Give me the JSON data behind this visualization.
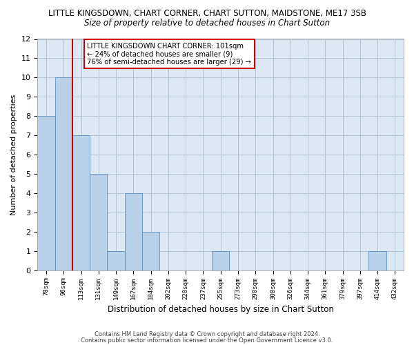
{
  "title_line1": "LITTLE KINGSDOWN, CHART CORNER, CHART SUTTON, MAIDSTONE, ME17 3SB",
  "title_line2": "Size of property relative to detached houses in Chart Sutton",
  "xlabel": "Distribution of detached houses by size in Chart Sutton",
  "ylabel": "Number of detached properties",
  "categories": [
    "78sqm",
    "96sqm",
    "113sqm",
    "131sqm",
    "149sqm",
    "167sqm",
    "184sqm",
    "202sqm",
    "220sqm",
    "237sqm",
    "255sqm",
    "273sqm",
    "290sqm",
    "308sqm",
    "326sqm",
    "344sqm",
    "361sqm",
    "379sqm",
    "397sqm",
    "414sqm",
    "432sqm"
  ],
  "values": [
    8,
    10,
    7,
    5,
    1,
    4,
    2,
    0,
    0,
    0,
    1,
    0,
    0,
    0,
    0,
    0,
    0,
    0,
    0,
    1,
    0
  ],
  "bar_color": "#b8d0e8",
  "bar_edge_color": "#6090c0",
  "reference_line_x": 1.5,
  "reference_line_color": "#cc0000",
  "ylim": [
    0,
    12
  ],
  "yticks": [
    0,
    1,
    2,
    3,
    4,
    5,
    6,
    7,
    8,
    9,
    10,
    11,
    12
  ],
  "annotation_box_text": "LITTLE KINGSDOWN CHART CORNER: 101sqm\n← 24% of detached houses are smaller (9)\n76% of semi-detached houses are larger (29) →",
  "footer_line1": "Contains HM Land Registry data © Crown copyright and database right 2024.",
  "footer_line2": "Contains public sector information licensed under the Open Government Licence v3.0.",
  "background_color": "#ffffff",
  "plot_bg_color": "#dce9f5",
  "grid_color": "#b0c4d8"
}
